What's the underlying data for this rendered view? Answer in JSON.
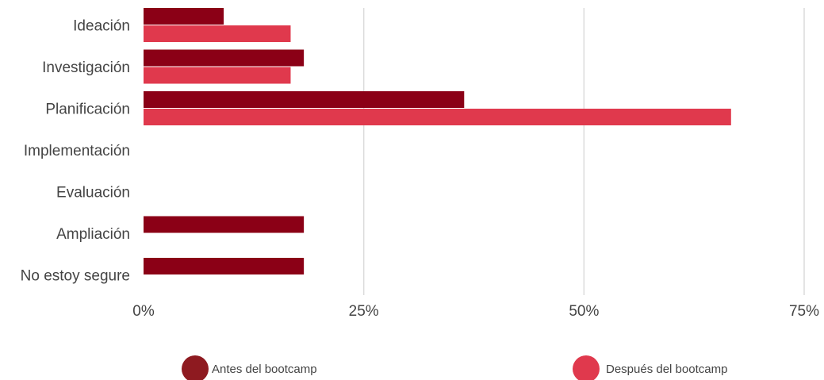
{
  "chart_data": {
    "type": "bar",
    "orientation": "horizontal",
    "categories": [
      "Ideación",
      "Investigación",
      "Planificación",
      "Implementación",
      "Evaluación",
      "Ampliación",
      "No estoy segure"
    ],
    "series": [
      {
        "name": "Antes del bootcamp",
        "color": "#8b0016",
        "legend_color": "#8e1a20",
        "values": [
          9.1,
          18.2,
          36.4,
          0,
          0,
          18.2,
          18.2
        ]
      },
      {
        "name": "Después del bootcamp",
        "color": "#e0394d",
        "legend_color": "#e0394d",
        "values": [
          16.7,
          16.7,
          66.7,
          0,
          0,
          0,
          0
        ]
      }
    ],
    "x_ticks": [
      "0%",
      "25%",
      "50%",
      "75%"
    ],
    "x_tick_values": [
      0,
      25,
      50,
      75
    ],
    "xlim": [
      0,
      75
    ],
    "grid": true,
    "legend_position": "bottom"
  }
}
